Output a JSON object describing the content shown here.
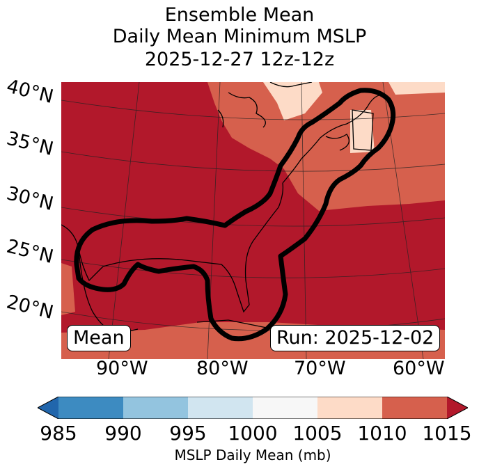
{
  "title": {
    "line1": "Ensemble Mean",
    "line2": "Daily Mean Minimum MSLP",
    "line3": "2025-12-27 12z-12z"
  },
  "axes": {
    "lat_labels": [
      "40°N",
      "35°N",
      "30°N",
      "25°N",
      "20°N"
    ],
    "lon_labels": [
      "90°W",
      "80°W",
      "70°W",
      "60°W"
    ]
  },
  "annotations": {
    "left_box": "Mean",
    "right_box": "Run: 2025-12-02"
  },
  "colorbar": {
    "label": "MSLP Daily Mean (mb)",
    "ticks": [
      "985",
      "990",
      "995",
      "1000",
      "1005",
      "1010",
      "1015"
    ],
    "colors": [
      "#2166ac",
      "#3d8bc1",
      "#93c4df",
      "#d1e5f0",
      "#f7f7f7",
      "#fddbc7",
      "#d6604d",
      "#b2182b"
    ]
  },
  "map_fill_colors": {
    "dominant": "#b2182b",
    "mid": "#d6604d",
    "light": "#fddbc7"
  }
}
